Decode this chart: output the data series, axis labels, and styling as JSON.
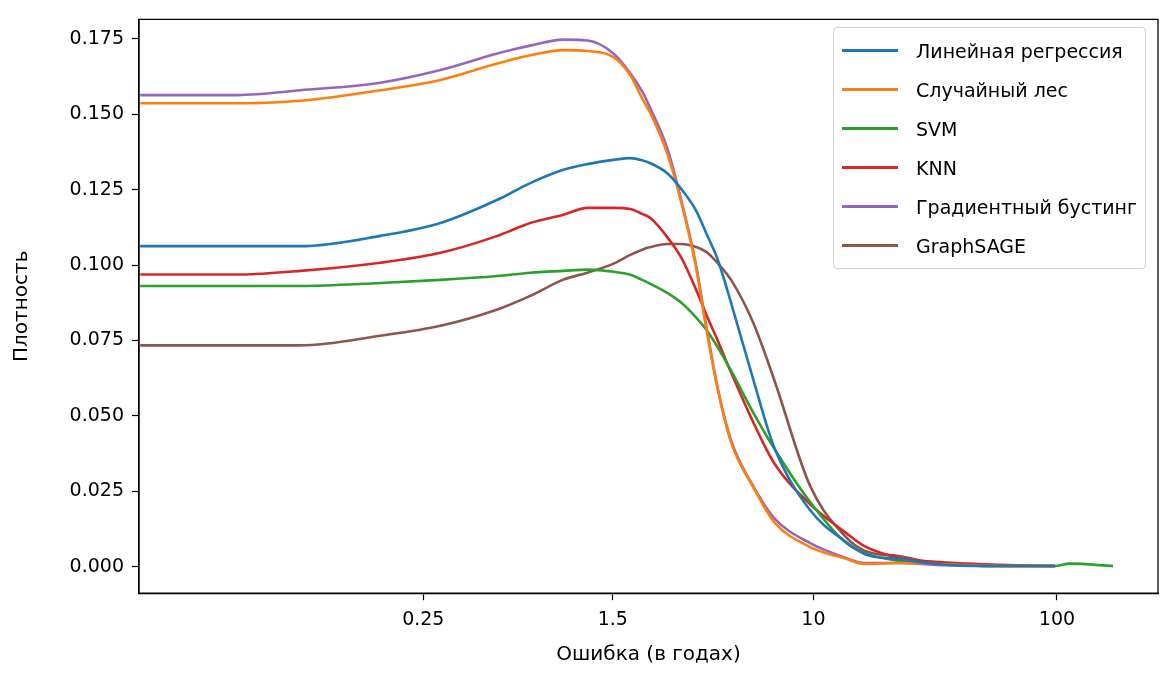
{
  "chart_data": {
    "type": "line",
    "xlabel": "Ошибка (в годах)",
    "ylabel": "Плотность",
    "log": "x",
    "x": [
      0.0172,
      0.0431,
      0.0782,
      0.1665,
      0.294,
      0.504,
      0.687,
      0.94,
      1.18,
      1.51,
      1.77,
      1.98,
      2.14,
      2.51,
      2.87,
      3.3,
      3.63,
      4.03,
      4.59,
      5.66,
      6.9,
      9.7,
      13.6,
      16.2,
      22.5,
      31.6,
      58.5,
      98.2
    ],
    "xlim": [
      0.017,
      260
    ],
    "xticks": [
      0.25,
      1.5,
      10,
      100
    ],
    "ylim": [
      -0.0088,
      0.1815
    ],
    "yticks": [
      {
        "value": 0,
        "label": "0.000"
      },
      {
        "value": 0.025,
        "label": "0.025"
      },
      {
        "value": 0.05,
        "label": "0.050"
      },
      {
        "value": 0.075,
        "label": "0.075"
      },
      {
        "value": 0.1,
        "label": "0.100"
      },
      {
        "value": 0.125,
        "label": "0.125"
      },
      {
        "value": 0.15,
        "label": "0.150"
      },
      {
        "value": 0.175,
        "label": "0.175"
      }
    ],
    "grid": false,
    "legend": "top right",
    "marker": "none",
    "line_style": "solid",
    "series": [
      {
        "name": "Линейная регрессия",
        "color": "#1f77b4",
        "values": [
          0.1063,
          0.1063,
          0.1063,
          0.1097,
          0.114,
          0.1217,
          0.1272,
          0.1316,
          0.1335,
          0.1349,
          0.1355,
          0.1348,
          0.1338,
          0.1305,
          0.1252,
          0.118,
          0.1106,
          0.1022,
          0.0875,
          0.0621,
          0.0396,
          0.0187,
          0.0082,
          0.0042,
          0.0025,
          0.0009,
          0.0002,
          0.0002
        ]
      },
      {
        "name": "Случайный лес",
        "color": "#ff7f0e",
        "values": [
          0.1537,
          0.1537,
          0.1545,
          0.158,
          0.1614,
          0.1669,
          0.1696,
          0.1713,
          0.171,
          0.169,
          0.163,
          0.1553,
          0.1504,
          0.137,
          0.1206,
          0.099,
          0.079,
          0.0595,
          0.0412,
          0.0264,
          0.0148,
          0.0065,
          0.0026,
          0.0009,
          0.0012,
          0.0009,
          0.0002,
          0.0002
        ]
      },
      {
        "name": "SVM",
        "color": "#2ca02c",
        "x": [
          0.0172,
          0.0431,
          0.0782,
          0.1665,
          0.294,
          0.504,
          0.687,
          0.94,
          1.18,
          1.51,
          1.77,
          1.98,
          2.14,
          2.51,
          2.87,
          3.3,
          3.63,
          4.03,
          4.59,
          5.66,
          6.9,
          9.7,
          13.6,
          16.2,
          22.5,
          31.6,
          58.5,
          98.2,
          113,
          170
        ],
        "values": [
          0.0931,
          0.0931,
          0.0931,
          0.0941,
          0.0951,
          0.0964,
          0.0975,
          0.0981,
          0.0985,
          0.0978,
          0.0968,
          0.0951,
          0.0938,
          0.0908,
          0.0875,
          0.0826,
          0.0786,
          0.073,
          0.065,
          0.0511,
          0.0392,
          0.0214,
          0.0079,
          0.0045,
          0.0019,
          0.0009,
          0.0002,
          0.0002,
          0.001,
          0.0002
        ]
      },
      {
        "name": "KNN",
        "color": "#d62728",
        "values": [
          0.0969,
          0.0969,
          0.0981,
          0.1008,
          0.1041,
          0.1097,
          0.114,
          0.1167,
          0.119,
          0.119,
          0.1186,
          0.117,
          0.1156,
          0.1093,
          0.1024,
          0.0918,
          0.0836,
          0.0753,
          0.0644,
          0.0479,
          0.0343,
          0.0207,
          0.0112,
          0.0068,
          0.0029,
          0.0016,
          0.0006,
          0.0002
        ]
      },
      {
        "name": "Градиентный бустинг",
        "color": "#9467bd",
        "values": [
          0.1564,
          0.1564,
          0.158,
          0.1605,
          0.1647,
          0.1702,
          0.1728,
          0.1748,
          0.1745,
          0.1702,
          0.1636,
          0.1576,
          0.152,
          0.1388,
          0.1213,
          0.0998,
          0.0799,
          0.0598,
          0.0419,
          0.0267,
          0.0161,
          0.0078,
          0.0029,
          0.0012,
          0.0012,
          0.0006,
          0.0002,
          0.0002
        ]
      },
      {
        "name": "GraphSAGE",
        "color": "#8c564b",
        "values": [
          0.0734,
          0.0734,
          0.0734,
          0.0766,
          0.0799,
          0.0853,
          0.0898,
          0.0952,
          0.0975,
          0.1005,
          0.1034,
          0.1051,
          0.106,
          0.107,
          0.107,
          0.106,
          0.1044,
          0.1008,
          0.0951,
          0.0809,
          0.062,
          0.0267,
          0.0098,
          0.0053,
          0.0035,
          0.0012,
          0.0002,
          0.0002
        ]
      }
    ]
  }
}
